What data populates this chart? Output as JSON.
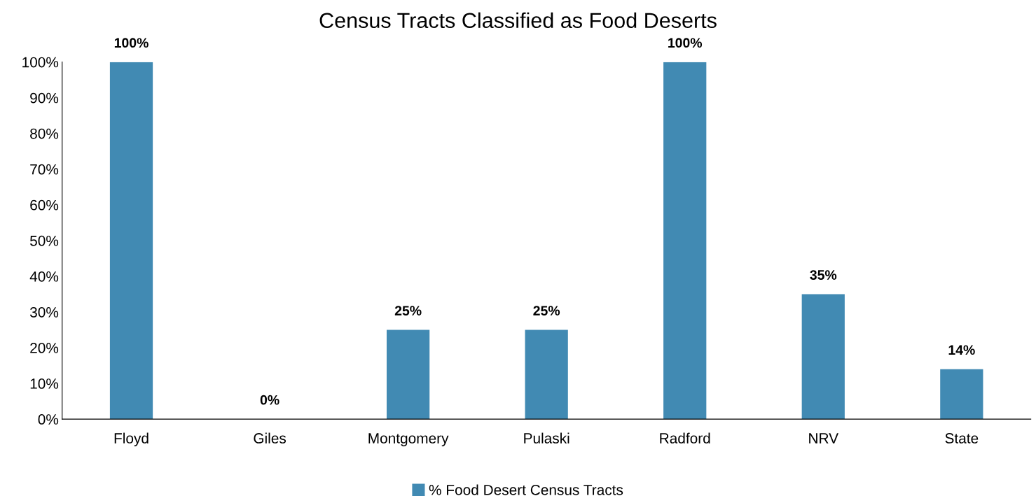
{
  "chart_data": {
    "type": "bar",
    "title": "Census Tracts Classified as Food Deserts",
    "categories": [
      "Floyd",
      "Giles",
      "Montgomery",
      "Pulaski",
      "Radford",
      "NRV",
      "State"
    ],
    "series": [
      {
        "name": "% Food Desert Census Tracts",
        "color": "#418ab3",
        "values": [
          100,
          0,
          25,
          25,
          100,
          35,
          14
        ]
      }
    ],
    "value_labels": [
      "100%",
      "0%",
      "25%",
      "25%",
      "100%",
      "35%",
      "14%"
    ],
    "ylim": [
      0,
      100
    ],
    "yticks": [
      {
        "value": 0,
        "label": "0%"
      },
      {
        "value": 10,
        "label": "10%"
      },
      {
        "value": 20,
        "label": "20%"
      },
      {
        "value": 30,
        "label": "30%"
      },
      {
        "value": 40,
        "label": "40%"
      },
      {
        "value": 50,
        "label": "50%"
      },
      {
        "value": 60,
        "label": "60%"
      },
      {
        "value": 70,
        "label": "70%"
      },
      {
        "value": 80,
        "label": "80%"
      },
      {
        "value": 90,
        "label": "90%"
      },
      {
        "value": 100,
        "label": "100%"
      }
    ],
    "grid": false,
    "legend": "bottom"
  }
}
